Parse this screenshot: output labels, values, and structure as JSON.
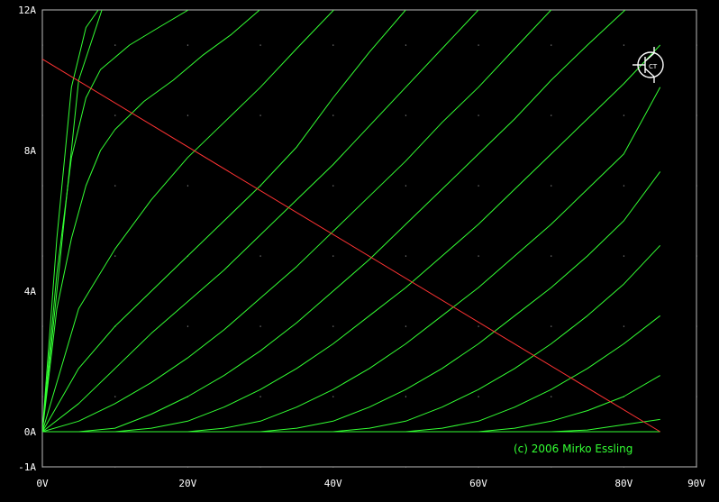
{
  "chart_data": {
    "type": "line",
    "title": "",
    "xlabel": "",
    "ylabel": "",
    "xlim": [
      0,
      90
    ],
    "ylim": [
      -1,
      12
    ],
    "x_ticks": [
      {
        "value": 0,
        "label": "0V"
      },
      {
        "value": 20,
        "label": "20V"
      },
      {
        "value": 40,
        "label": "40V"
      },
      {
        "value": 60,
        "label": "60V"
      },
      {
        "value": 80,
        "label": "80V"
      },
      {
        "value": 90,
        "label": "90V"
      }
    ],
    "y_ticks": [
      {
        "value": -1,
        "label": "-1A"
      },
      {
        "value": 0,
        "label": "0A"
      },
      {
        "value": 4,
        "label": "4A"
      },
      {
        "value": 8,
        "label": "8A"
      },
      {
        "value": 12,
        "label": "12A"
      }
    ],
    "grid": "dotted",
    "credit": "(c) 2006 Mirko Essling",
    "colors": {
      "background": "#000000",
      "curves": "#33ff33",
      "load_line": "#ff3333",
      "grid": "#888888",
      "text": "#ffffff"
    },
    "load_line": {
      "x": [
        0,
        85
      ],
      "y": [
        10.6,
        0
      ]
    },
    "series": [
      {
        "x": [
          0,
          5,
          8.2
        ],
        "y": [
          0,
          10,
          12
        ]
      },
      {
        "x": [
          0,
          2,
          4,
          6,
          7.7
        ],
        "y": [
          0,
          5.5,
          9.8,
          11.5,
          12
        ]
      },
      {
        "x": [
          0,
          2,
          4,
          6,
          8,
          12,
          16,
          20.1
        ],
        "y": [
          0,
          4.5,
          7.8,
          9.5,
          10.3,
          11,
          11.5,
          12
        ]
      },
      {
        "x": [
          0,
          2,
          4,
          6,
          8,
          10,
          14,
          18,
          22,
          26,
          29.9
        ],
        "y": [
          0,
          3.5,
          5.5,
          7,
          8,
          8.6,
          9.4,
          10,
          10.7,
          11.3,
          12
        ]
      },
      {
        "x": [
          0,
          5,
          10,
          15,
          20,
          25,
          30,
          35,
          40.1
        ],
        "y": [
          0,
          3.5,
          5.2,
          6.6,
          7.8,
          8.8,
          9.8,
          10.9,
          12
        ]
      },
      {
        "x": [
          0,
          5,
          10,
          15,
          20,
          25,
          30,
          35,
          40,
          45,
          50
        ],
        "y": [
          0,
          1.8,
          3,
          4,
          5,
          6,
          7,
          8.1,
          9.5,
          10.8,
          12
        ]
      },
      {
        "x": [
          0,
          5,
          10,
          15,
          20,
          25,
          30,
          35,
          40,
          45,
          50,
          55,
          60
        ],
        "y": [
          0,
          0.8,
          1.8,
          2.8,
          3.7,
          4.6,
          5.6,
          6.6,
          7.6,
          8.7,
          9.8,
          10.9,
          12
        ]
      },
      {
        "x": [
          0,
          5,
          10,
          15,
          20,
          25,
          30,
          35,
          40,
          45,
          50,
          55,
          60,
          65,
          70
        ],
        "y": [
          0,
          0.3,
          0.8,
          1.4,
          2.1,
          2.9,
          3.8,
          4.7,
          5.7,
          6.7,
          7.7,
          8.8,
          9.8,
          10.9,
          12
        ]
      },
      {
        "x": [
          0,
          5,
          10,
          15,
          20,
          25,
          30,
          35,
          40,
          45,
          50,
          55,
          60,
          65,
          70,
          75,
          80.2
        ],
        "y": [
          0,
          0,
          0.1,
          0.5,
          1,
          1.6,
          2.3,
          3.1,
          4,
          4.9,
          5.9,
          6.9,
          7.9,
          8.9,
          10,
          11,
          12
        ]
      },
      {
        "x": [
          0,
          10,
          15,
          20,
          25,
          30,
          35,
          40,
          45,
          50,
          55,
          60,
          65,
          70,
          75,
          80,
          85
        ],
        "y": [
          0,
          0,
          0.1,
          0.3,
          0.7,
          1.2,
          1.8,
          2.5,
          3.3,
          4.1,
          5,
          5.9,
          6.9,
          7.9,
          8.9,
          9.9,
          11
        ]
      },
      {
        "x": [
          0,
          20,
          25,
          30,
          35,
          40,
          45,
          50,
          55,
          60,
          65,
          70,
          75,
          80,
          85
        ],
        "y": [
          0,
          0,
          0.1,
          0.3,
          0.7,
          1.2,
          1.8,
          2.5,
          3.3,
          4.1,
          5,
          5.9,
          6.9,
          7.9,
          9.8
        ]
      },
      {
        "x": [
          0,
          30,
          35,
          40,
          45,
          50,
          55,
          60,
          65,
          70,
          75,
          80,
          85
        ],
        "y": [
          0,
          0,
          0.1,
          0.3,
          0.7,
          1.2,
          1.8,
          2.5,
          3.3,
          4.1,
          5,
          6,
          7.4
        ]
      },
      {
        "x": [
          0,
          40,
          45,
          50,
          55,
          60,
          65,
          70,
          75,
          80,
          85
        ],
        "y": [
          0,
          0,
          0.1,
          0.3,
          0.7,
          1.2,
          1.8,
          2.5,
          3.3,
          4.2,
          5.3
        ]
      },
      {
        "x": [
          0,
          50,
          55,
          60,
          65,
          70,
          75,
          80,
          85
        ],
        "y": [
          0,
          0,
          0.1,
          0.3,
          0.7,
          1.2,
          1.8,
          2.5,
          3.3
        ]
      },
      {
        "x": [
          0,
          60,
          65,
          70,
          75,
          80,
          85
        ],
        "y": [
          0,
          0,
          0.1,
          0.3,
          0.6,
          1,
          1.6
        ]
      },
      {
        "x": [
          0,
          70,
          75,
          80,
          85
        ],
        "y": [
          0,
          0,
          0.05,
          0.2,
          0.35
        ]
      }
    ]
  }
}
